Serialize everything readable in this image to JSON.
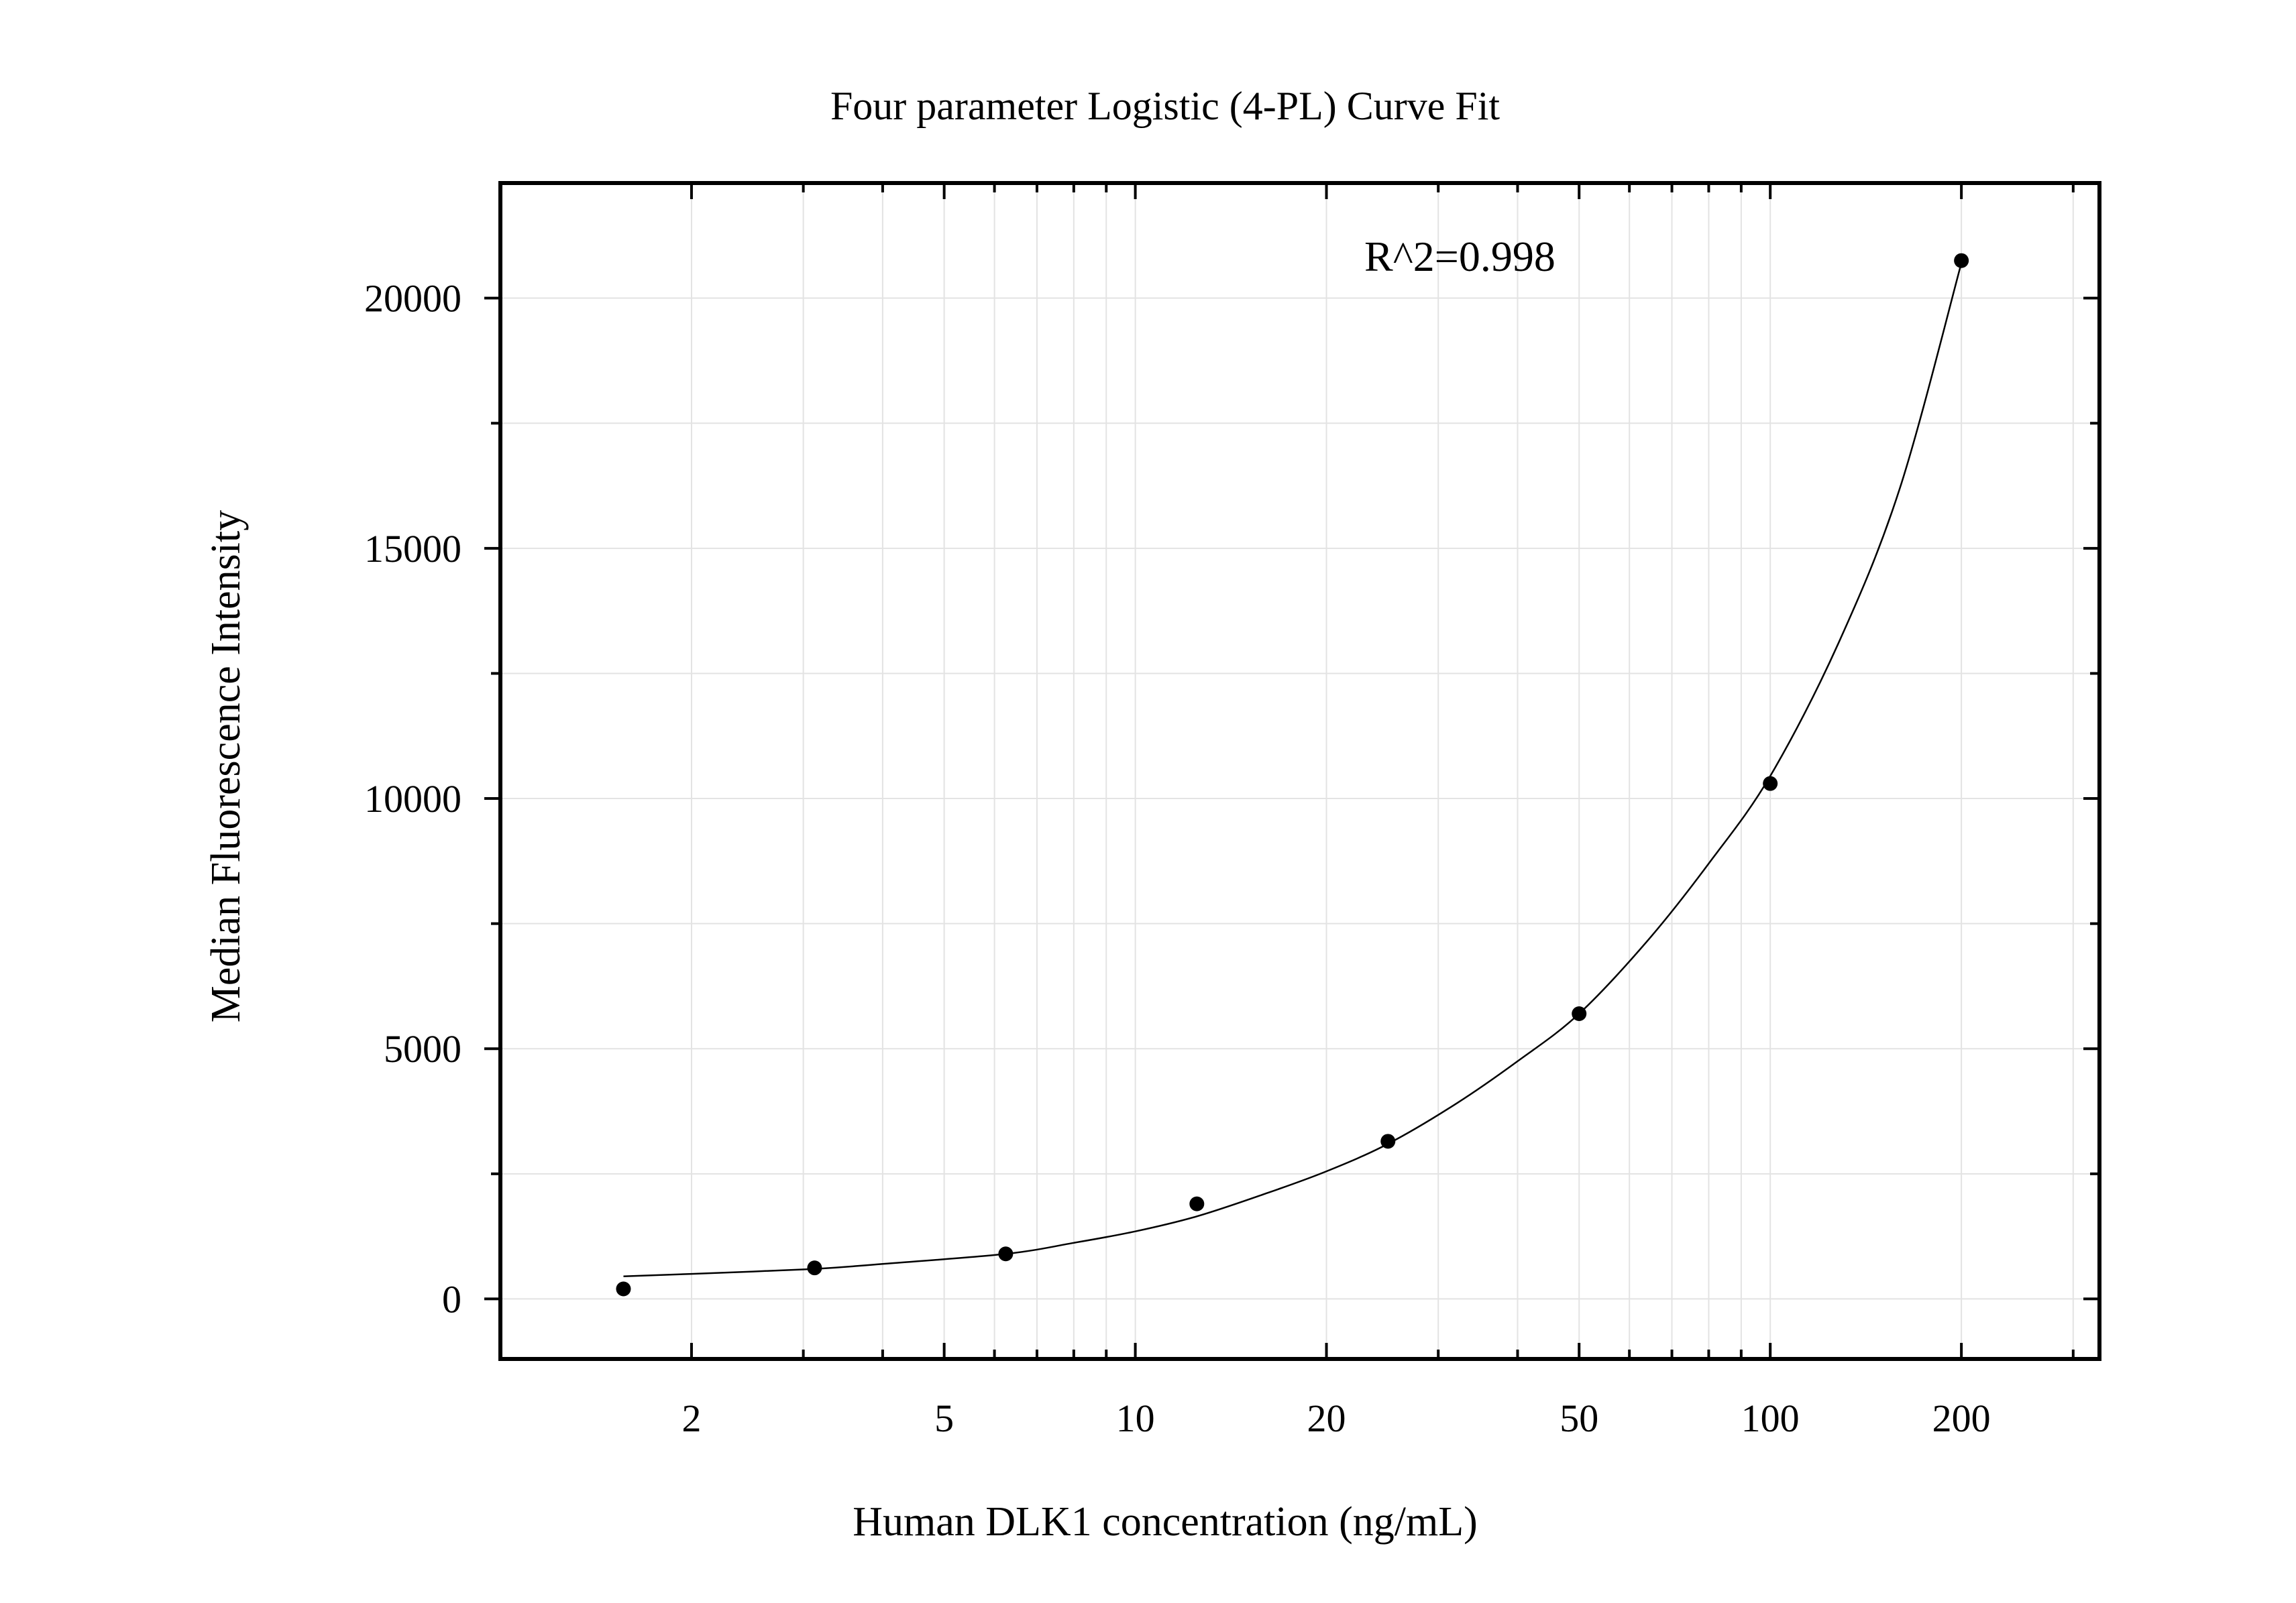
{
  "chart_data": {
    "type": "scatter",
    "title": "Four parameter Logistic (4-PL) Curve Fit",
    "xlabel": "Human DLK1 concentration (ng/mL)",
    "ylabel": "Median Fluorescence Intensity",
    "x_scale": "log",
    "xlim": [
      1.0,
      330
    ],
    "ylim": [
      -1200,
      22300
    ],
    "x_ticks": [
      2,
      5,
      10,
      20,
      50,
      100,
      200
    ],
    "x_tick_labels": [
      "2",
      "5",
      "10",
      "20",
      "50",
      "100",
      "200"
    ],
    "y_ticks": [
      0,
      5000,
      10000,
      15000,
      20000
    ],
    "y_tick_labels": [
      "0",
      "5000",
      "10000",
      "15000",
      "20000"
    ],
    "grid": true,
    "annotation": "R^2=0.998",
    "points": [
      {
        "x": 1.5625,
        "y": 200
      },
      {
        "x": 3.125,
        "y": 620
      },
      {
        "x": 6.25,
        "y": 900
      },
      {
        "x": 12.5,
        "y": 1900
      },
      {
        "x": 25,
        "y": 3150
      },
      {
        "x": 50,
        "y": 5700
      },
      {
        "x": 100,
        "y": 10300
      },
      {
        "x": 200,
        "y": 20750
      }
    ],
    "fit_curve": {
      "x": [
        1.5625,
        2,
        3.125,
        4,
        6.25,
        8,
        10,
        12.5,
        16,
        20,
        25,
        32,
        40,
        50,
        64,
        80,
        100,
        128,
        160,
        200
      ],
      "y": [
        450,
        500,
        600,
        700,
        900,
        1120,
        1350,
        1650,
        2100,
        2550,
        3100,
        3900,
        4750,
        5700,
        7150,
        8700,
        10450,
        13100,
        16200,
        20700
      ]
    },
    "colors": {
      "axis": "#000000",
      "grid": "#e3e3e3",
      "points": "#000000",
      "curve": "#000000"
    }
  }
}
